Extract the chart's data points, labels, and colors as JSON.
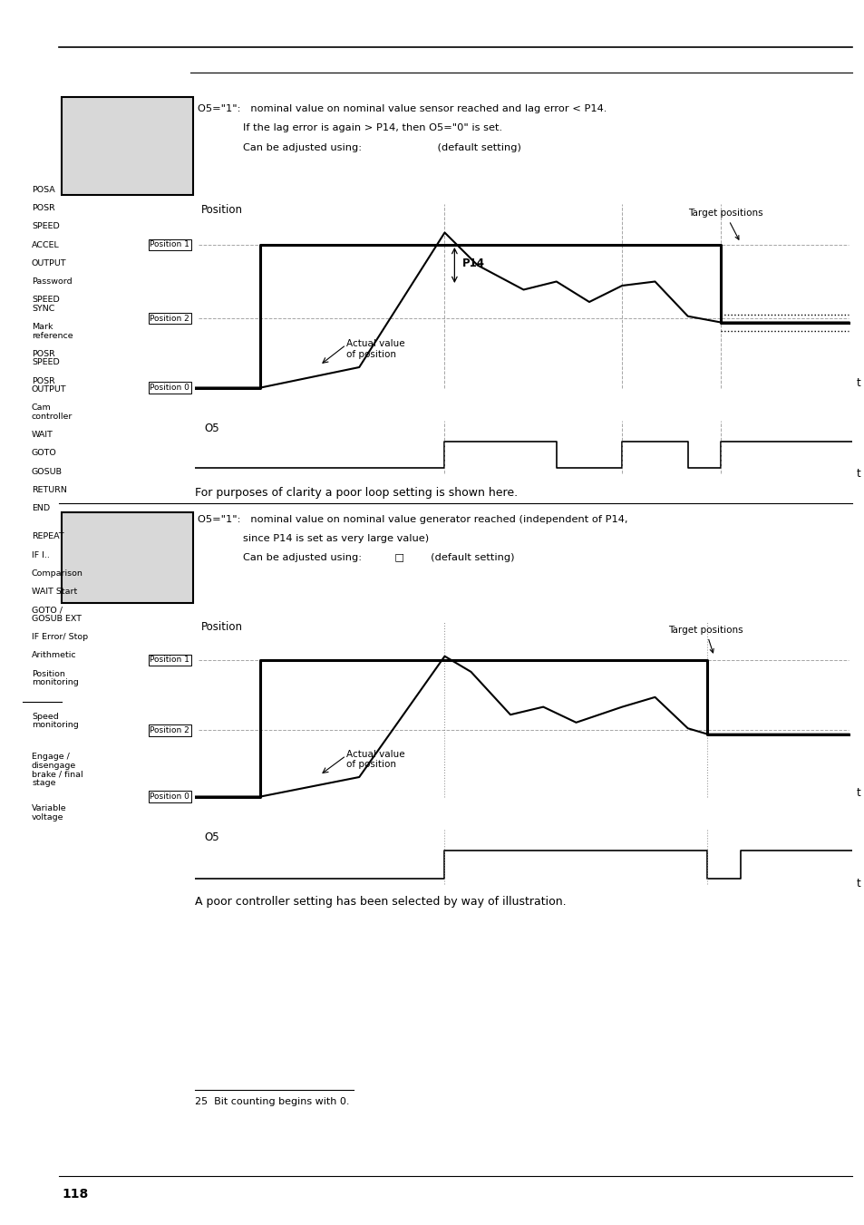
{
  "bg_color": "#ffffff",
  "page_number": "118",
  "footnote_text": "25  Bit counting begins with 0.",
  "footer_text": "For purposes of clarity a poor loop setting is shown here.",
  "footer2_text": "A poor controller setting has been selected by way of illustration.",
  "sidebar_labels": [
    [
      "POSA",
      0.845
    ],
    [
      "POSR",
      0.83
    ],
    [
      "SPEED",
      0.815
    ],
    [
      "ACCEL",
      0.8
    ],
    [
      "OUTPUT",
      0.785
    ],
    [
      "Password",
      0.77
    ],
    [
      "SPEED",
      0.755
    ],
    [
      "SYNC",
      0.748
    ],
    [
      "Mark",
      0.733
    ],
    [
      "reference",
      0.726
    ],
    [
      "POSR",
      0.711
    ],
    [
      "SPEED",
      0.704
    ],
    [
      "POSR",
      0.689
    ],
    [
      "OUTPUT",
      0.682
    ],
    [
      "Cam",
      0.667
    ],
    [
      "controller",
      0.66
    ],
    [
      "WAIT",
      0.645
    ],
    [
      "GOTO",
      0.63
    ],
    [
      "GOSUB",
      0.615
    ],
    [
      "RETURN",
      0.6
    ],
    [
      "END",
      0.585
    ],
    [
      "REPEAT",
      0.562
    ],
    [
      "IF I..",
      0.547
    ],
    [
      "Comparison",
      0.532
    ],
    [
      "WAIT Start",
      0.517
    ],
    [
      "GOTO /",
      0.502
    ],
    [
      "GOSUB EXT",
      0.495
    ],
    [
      "IF Error/ Stop",
      0.48
    ],
    [
      "Arithmetic",
      0.465
    ],
    [
      "Position",
      0.45
    ],
    [
      "monitoring",
      0.443
    ],
    [
      "Speed",
      0.415
    ],
    [
      "monitoring",
      0.408
    ],
    [
      "Engage /",
      0.382
    ],
    [
      "disengage",
      0.375
    ],
    [
      "brake / final",
      0.368
    ],
    [
      "stage",
      0.361
    ],
    [
      "Variable",
      0.34
    ],
    [
      "voltage",
      0.333
    ]
  ]
}
